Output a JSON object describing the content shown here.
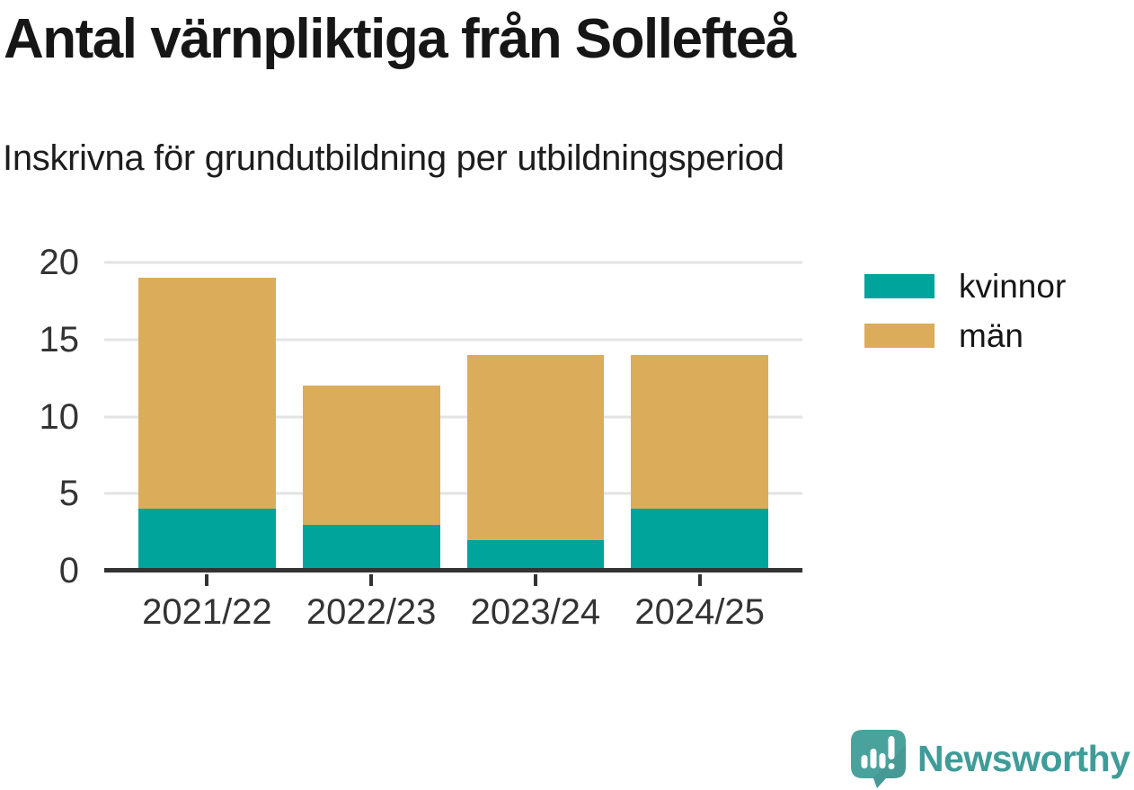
{
  "title": "Antal värnpliktiga från Sollefteå",
  "subtitle": "Inskrivna för grundutbildning per utbildningsperiod",
  "legend": {
    "items": [
      {
        "label": "kvinnor",
        "color": "#00a49b"
      },
      {
        "label": "män",
        "color": "#dbac5a"
      }
    ]
  },
  "footer": {
    "brand": "Newsworthy",
    "brand_color": "#3f9c98",
    "logo_icon": "newsworthy-speech-bubble-bar-chart-icon"
  },
  "colors": {
    "kvinnor": "#00a49b",
    "man": "#dbac5a",
    "grid": "#e3e3e3",
    "axis": "#333333",
    "text": "#161616"
  },
  "chart_data": {
    "type": "bar",
    "stacked": true,
    "title": "Antal värnpliktiga från Sollefteå",
    "subtitle": "Inskrivna för grundutbildning per utbildningsperiod",
    "categories": [
      "2021/22",
      "2022/23",
      "2023/24",
      "2024/25"
    ],
    "series": [
      {
        "name": "kvinnor",
        "color": "#00a49b",
        "values": [
          4,
          3,
          2,
          4
        ]
      },
      {
        "name": "män",
        "color": "#dbac5a",
        "values": [
          15,
          9,
          12,
          10
        ]
      }
    ],
    "totals": [
      19,
      12,
      14,
      14
    ],
    "xlabel": "",
    "ylabel": "",
    "y_ticks": [
      0,
      5,
      10,
      15,
      20
    ],
    "ylim": [
      0,
      20
    ],
    "grid": true,
    "legend_position": "top-right"
  }
}
